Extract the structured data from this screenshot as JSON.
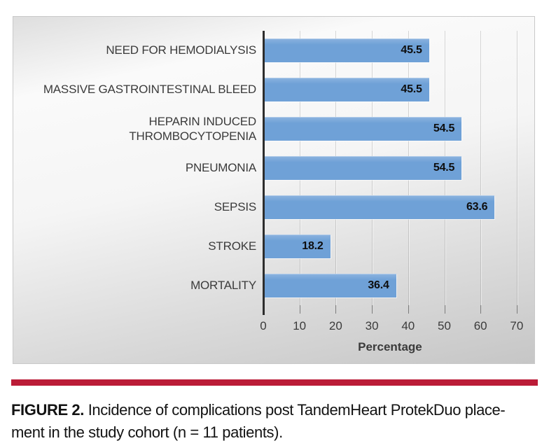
{
  "colors": {
    "bar_blue": "#6FA1D7",
    "rule_red": "#BB1C37",
    "axis_dark": "#2D2D2D",
    "label_gray": "#3B3B3B"
  },
  "caption": {
    "line1_bold": "FIGURE 2.",
    "line1_rest": " Incidence of complications post TandemHeart ProtekDuo place-",
    "line2": "ment in the study cohort (n = 11 patients)."
  },
  "chart_data": {
    "type": "bar",
    "orientation": "horizontal",
    "title": "",
    "categories": [
      "NEED FOR HEMODIALYSIS",
      "MASSIVE GASTROINTESTINAL BLEED",
      "HEPARIN INDUCED THROMBOCYTOPENIA",
      "PNEUMONIA",
      "SEPSIS",
      "STROKE",
      "MORTALITY"
    ],
    "category_label_lines": [
      [
        "NEED FOR HEMODIALYSIS"
      ],
      [
        "MASSIVE GASTROINTESTINAL BLEED"
      ],
      [
        "HEPARIN INDUCED",
        "THROMBOCYTOPENIA"
      ],
      [
        "PNEUMONIA"
      ],
      [
        "SEPSIS"
      ],
      [
        "STROKE"
      ],
      [
        "MORTALITY"
      ]
    ],
    "values": [
      45.5,
      45.5,
      54.5,
      54.5,
      63.6,
      18.2,
      36.4
    ],
    "data_labels": [
      "45.5",
      "45.5",
      "54.5",
      "54.5",
      "63.6",
      "18.2",
      "36.4"
    ],
    "xlabel": "Percentage",
    "ylabel": "",
    "x_ticks": [
      0,
      10,
      20,
      30,
      40,
      50,
      60,
      70
    ],
    "xlim": [
      0,
      72
    ],
    "grid": true,
    "legend": "none",
    "value_label_position": "inside-end",
    "bar_color": "#6FA1D7"
  }
}
